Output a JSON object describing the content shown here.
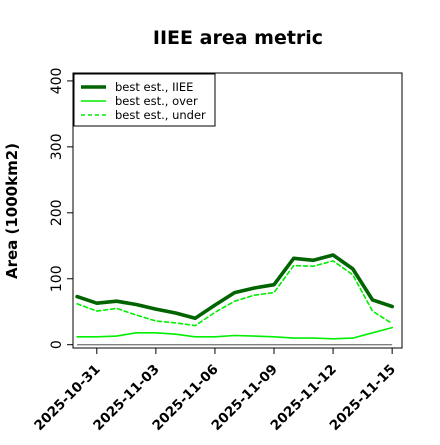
{
  "chart_data": {
    "type": "line",
    "title": "IIEE area metric",
    "xlabel": "",
    "ylabel": "Area (1000km2)",
    "ylim": [
      -5,
      412
    ],
    "xlim": [
      "2025-10-29T19:00",
      "2025-11-15T12:00"
    ],
    "yticks": [
      0,
      100,
      200,
      300,
      400
    ],
    "xticks": [
      "2025-10-31",
      "2025-11-03",
      "2025-11-06",
      "2025-11-09",
      "2025-11-12",
      "2025-11-15"
    ],
    "grid": false,
    "legend_position": "top-left",
    "x": [
      "2025-10-30",
      "2025-10-31",
      "2025-11-01",
      "2025-11-02",
      "2025-11-03",
      "2025-11-04",
      "2025-11-05",
      "2025-11-06",
      "2025-11-07",
      "2025-11-08",
      "2025-11-09",
      "2025-11-10",
      "2025-11-11",
      "2025-11-12",
      "2025-11-13",
      "2025-11-14",
      "2025-11-15"
    ],
    "series": [
      {
        "name": "best est., IIEE",
        "color": "#006400",
        "style": "solid-thick",
        "values": [
          73,
          63,
          66,
          61,
          54,
          48,
          40,
          60,
          79,
          86,
          91,
          131,
          128,
          136,
          115,
          68,
          58
        ]
      },
      {
        "name": "best est., over",
        "color": "#00ee00",
        "style": "solid",
        "values": [
          12,
          12,
          13,
          18,
          18,
          16,
          12,
          12,
          14,
          13,
          12,
          10,
          10,
          9,
          10,
          18,
          26
        ]
      },
      {
        "name": "best est., under",
        "color": "#00ee00",
        "style": "dashed",
        "values": [
          62,
          51,
          55,
          45,
          36,
          33,
          29,
          49,
          66,
          75,
          79,
          120,
          119,
          127,
          106,
          51,
          32
        ]
      }
    ],
    "zero_line": {
      "y": 0,
      "from": "2025-10-30",
      "to": "2025-11-15",
      "color": "#808080"
    }
  }
}
